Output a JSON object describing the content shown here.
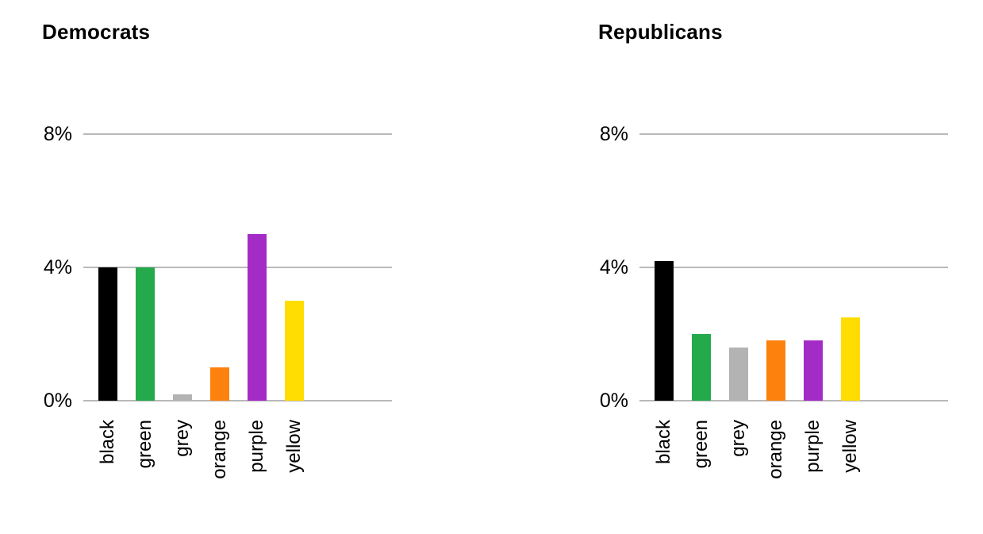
{
  "style": {
    "background": "#ffffff",
    "gridline_color": "#b9b9b9",
    "text_color": "#000000"
  },
  "chart_data": [
    {
      "type": "bar",
      "title": "Democrats",
      "categories": [
        "black",
        "green",
        "grey",
        "orange",
        "purple",
        "yellow"
      ],
      "values": [
        4.0,
        4.0,
        0.2,
        1.0,
        5.0,
        3.0
      ],
      "colors": [
        "#000000",
        "#24a94b",
        "#b3b3b3",
        "#fd810d",
        "#a42cc6",
        "#ffdd00"
      ],
      "unit": "percent",
      "xlabel": "",
      "ylabel": "",
      "yticks": [
        {
          "value": 0,
          "label": "0%"
        },
        {
          "value": 4,
          "label": "4%"
        },
        {
          "value": 8,
          "label": "8%"
        }
      ],
      "ylim": [
        0,
        8
      ],
      "grid": "horizontal-only",
      "legend": "none",
      "xtick_rotation": 90
    },
    {
      "type": "bar",
      "title": "Republicans",
      "categories": [
        "black",
        "green",
        "grey",
        "orange",
        "purple",
        "yellow"
      ],
      "values": [
        4.2,
        2.0,
        1.6,
        1.8,
        1.8,
        2.5
      ],
      "colors": [
        "#000000",
        "#24a94b",
        "#b3b3b3",
        "#fd810d",
        "#a42cc6",
        "#ffdd00"
      ],
      "unit": "percent",
      "xlabel": "",
      "ylabel": "",
      "yticks": [
        {
          "value": 0,
          "label": "0%"
        },
        {
          "value": 4,
          "label": "4%"
        },
        {
          "value": 8,
          "label": "8%"
        }
      ],
      "ylim": [
        0,
        8
      ],
      "grid": "horizontal-only",
      "legend": "none",
      "xtick_rotation": 90
    }
  ]
}
